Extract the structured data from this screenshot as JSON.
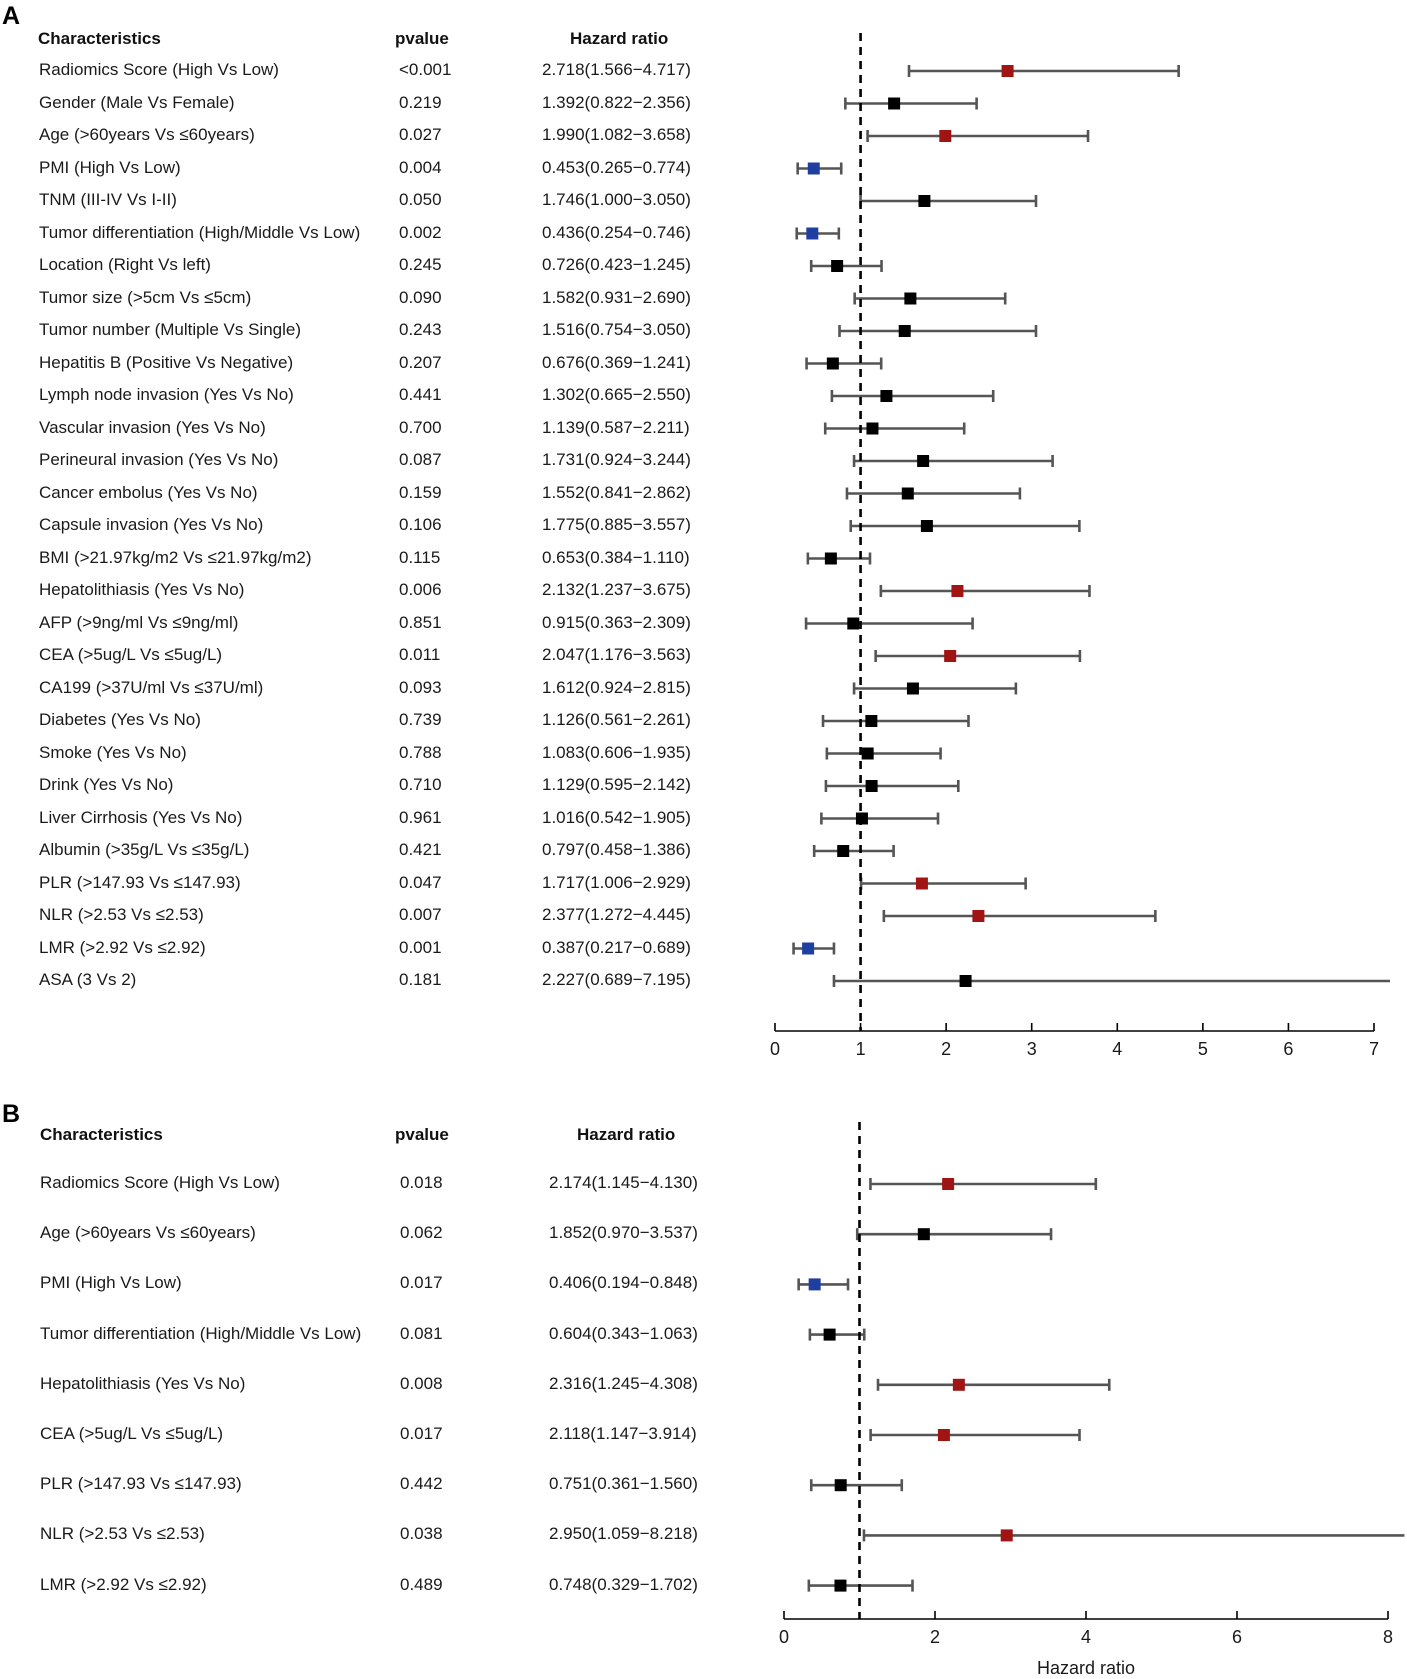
{
  "chart_data": [
    {
      "type": "forest",
      "panel_label": "A",
      "headers": {
        "characteristics": "Characteristics",
        "pvalue": "pvalue",
        "hazard_ratio": "Hazard ratio"
      },
      "reference_line": 1,
      "xlim": [
        0,
        7
      ],
      "xticks": [
        0,
        1,
        2,
        3,
        4,
        5,
        6,
        7
      ],
      "xlabel": "",
      "rows": [
        {
          "label": "Radiomics Score (High Vs Low)",
          "pvalue": "<0.001",
          "hr_text": "2.718(1.566−4.717)",
          "hr": 2.718,
          "lo": 1.566,
          "hi": 4.717,
          "color": "#a01414"
        },
        {
          "label": "Gender (Male Vs Female)",
          "pvalue": "0.219",
          "hr_text": "1.392(0.822−2.356)",
          "hr": 1.392,
          "lo": 0.822,
          "hi": 2.356,
          "color": "#000000"
        },
        {
          "label": "Age (>60years Vs ≤60years)",
          "pvalue": "0.027",
          "hr_text": "1.990(1.082−3.658)",
          "hr": 1.99,
          "lo": 1.082,
          "hi": 3.658,
          "color": "#a01414"
        },
        {
          "label": "PMI (High Vs Low)",
          "pvalue": "0.004",
          "hr_text": "0.453(0.265−0.774)",
          "hr": 0.453,
          "lo": 0.265,
          "hi": 0.774,
          "color": "#1f3fa0"
        },
        {
          "label": "TNM (III-IV Vs I-II)",
          "pvalue": "0.050",
          "hr_text": "1.746(1.000−3.050)",
          "hr": 1.746,
          "lo": 1.0,
          "hi": 3.05,
          "color": "#000000"
        },
        {
          "label": "Tumor differentiation (High/Middle Vs Low)",
          "pvalue": "0.002",
          "hr_text": "0.436(0.254−0.746)",
          "hr": 0.436,
          "lo": 0.254,
          "hi": 0.746,
          "color": "#1f3fa0"
        },
        {
          "label": "Location (Right Vs left)",
          "pvalue": "0.245",
          "hr_text": "0.726(0.423−1.245)",
          "hr": 0.726,
          "lo": 0.423,
          "hi": 1.245,
          "color": "#000000"
        },
        {
          "label": "Tumor size (>5cm Vs ≤5cm)",
          "pvalue": "0.090",
          "hr_text": "1.582(0.931−2.690)",
          "hr": 1.582,
          "lo": 0.931,
          "hi": 2.69,
          "color": "#000000"
        },
        {
          "label": "Tumor number (Multiple Vs Single)",
          "pvalue": "0.243",
          "hr_text": "1.516(0.754−3.050)",
          "hr": 1.516,
          "lo": 0.754,
          "hi": 3.05,
          "color": "#000000"
        },
        {
          "label": "Hepatitis B (Positive Vs Negative)",
          "pvalue": "0.207",
          "hr_text": "0.676(0.369−1.241)",
          "hr": 0.676,
          "lo": 0.369,
          "hi": 1.241,
          "color": "#000000"
        },
        {
          "label": "Lymph node invasion (Yes Vs No)",
          "pvalue": "0.441",
          "hr_text": "1.302(0.665−2.550)",
          "hr": 1.302,
          "lo": 0.665,
          "hi": 2.55,
          "color": "#000000"
        },
        {
          "label": "Vascular invasion (Yes Vs No)",
          "pvalue": "0.700",
          "hr_text": "1.139(0.587−2.211)",
          "hr": 1.139,
          "lo": 0.587,
          "hi": 2.211,
          "color": "#000000"
        },
        {
          "label": "Perineural invasion (Yes Vs No)",
          "pvalue": "0.087",
          "hr_text": "1.731(0.924−3.244)",
          "hr": 1.731,
          "lo": 0.924,
          "hi": 3.244,
          "color": "#000000"
        },
        {
          "label": "Cancer embolus (Yes Vs No)",
          "pvalue": "0.159",
          "hr_text": "1.552(0.841−2.862)",
          "hr": 1.552,
          "lo": 0.841,
          "hi": 2.862,
          "color": "#000000"
        },
        {
          "label": "Capsule invasion (Yes Vs No)",
          "pvalue": "0.106",
          "hr_text": "1.775(0.885−3.557)",
          "hr": 1.775,
          "lo": 0.885,
          "hi": 3.557,
          "color": "#000000"
        },
        {
          "label": "BMI (>21.97kg/m2 Vs ≤21.97kg/m2)",
          "pvalue": "0.115",
          "hr_text": "0.653(0.384−1.110)",
          "hr": 0.653,
          "lo": 0.384,
          "hi": 1.11,
          "color": "#000000"
        },
        {
          "label": "Hepatolithiasis (Yes Vs No)",
          "pvalue": "0.006",
          "hr_text": "2.132(1.237−3.675)",
          "hr": 2.132,
          "lo": 1.237,
          "hi": 3.675,
          "color": "#a01414"
        },
        {
          "label": "AFP (>9ng/ml Vs ≤9ng/ml)",
          "pvalue": "0.851",
          "hr_text": "0.915(0.363−2.309)",
          "hr": 0.915,
          "lo": 0.363,
          "hi": 2.309,
          "color": "#000000"
        },
        {
          "label": "CEA (>5ug/L Vs ≤5ug/L)",
          "pvalue": "0.011",
          "hr_text": "2.047(1.176−3.563)",
          "hr": 2.047,
          "lo": 1.176,
          "hi": 3.563,
          "color": "#a01414"
        },
        {
          "label": "CA199 (>37U/ml Vs ≤37U/ml)",
          "pvalue": "0.093",
          "hr_text": "1.612(0.924−2.815)",
          "hr": 1.612,
          "lo": 0.924,
          "hi": 2.815,
          "color": "#000000"
        },
        {
          "label": "Diabetes (Yes Vs No)",
          "pvalue": "0.739",
          "hr_text": "1.126(0.561−2.261)",
          "hr": 1.126,
          "lo": 0.561,
          "hi": 2.261,
          "color": "#000000"
        },
        {
          "label": "Smoke (Yes Vs No)",
          "pvalue": "0.788",
          "hr_text": "1.083(0.606−1.935)",
          "hr": 1.083,
          "lo": 0.606,
          "hi": 1.935,
          "color": "#000000"
        },
        {
          "label": "Drink (Yes Vs No)",
          "pvalue": "0.710",
          "hr_text": "1.129(0.595−2.142)",
          "hr": 1.129,
          "lo": 0.595,
          "hi": 2.142,
          "color": "#000000"
        },
        {
          "label": "Liver Cirrhosis (Yes Vs No)",
          "pvalue": "0.961",
          "hr_text": "1.016(0.542−1.905)",
          "hr": 1.016,
          "lo": 0.542,
          "hi": 1.905,
          "color": "#000000"
        },
        {
          "label": "Albumin (>35g/L Vs ≤35g/L)",
          "pvalue": "0.421",
          "hr_text": "0.797(0.458−1.386)",
          "hr": 0.797,
          "lo": 0.458,
          "hi": 1.386,
          "color": "#000000"
        },
        {
          "label": "PLR (>147.93 Vs ≤147.93)",
          "pvalue": "0.047",
          "hr_text": "1.717(1.006−2.929)",
          "hr": 1.717,
          "lo": 1.006,
          "hi": 2.929,
          "color": "#a01414"
        },
        {
          "label": "NLR (>2.53 Vs ≤2.53)",
          "pvalue": "0.007",
          "hr_text": "2.377(1.272−4.445)",
          "hr": 2.377,
          "lo": 1.272,
          "hi": 4.445,
          "color": "#a01414"
        },
        {
          "label": "LMR (>2.92 Vs ≤2.92)",
          "pvalue": "0.001",
          "hr_text": "0.387(0.217−0.689)",
          "hr": 0.387,
          "lo": 0.217,
          "hi": 0.689,
          "color": "#1f3fa0"
        },
        {
          "label": "ASA (3 Vs 2)",
          "pvalue": "0.181",
          "hr_text": "2.227(0.689−7.195)",
          "hr": 2.227,
          "lo": 0.689,
          "hi": 7.195,
          "color": "#000000"
        }
      ]
    },
    {
      "type": "forest",
      "panel_label": "B",
      "headers": {
        "characteristics": "Characteristics",
        "pvalue": "pvalue",
        "hazard_ratio": "Hazard ratio"
      },
      "reference_line": 1,
      "xlim": [
        0,
        8
      ],
      "xticks": [
        0,
        2,
        4,
        6,
        8
      ],
      "xlabel": "Hazard ratio",
      "rows": [
        {
          "label": "Radiomics Score (High Vs Low)",
          "pvalue": "0.018",
          "hr_text": "2.174(1.145−4.130)",
          "hr": 2.174,
          "lo": 1.145,
          "hi": 4.13,
          "color": "#a01414"
        },
        {
          "label": "Age (>60years Vs ≤60years)",
          "pvalue": "0.062",
          "hr_text": "1.852(0.970−3.537)",
          "hr": 1.852,
          "lo": 0.97,
          "hi": 3.537,
          "color": "#000000"
        },
        {
          "label": "PMI (High Vs Low)",
          "pvalue": "0.017",
          "hr_text": "0.406(0.194−0.848)",
          "hr": 0.406,
          "lo": 0.194,
          "hi": 0.848,
          "color": "#1f3fa0"
        },
        {
          "label": "Tumor differentiation (High/Middle Vs Low)",
          "pvalue": "0.081",
          "hr_text": "0.604(0.343−1.063)",
          "hr": 0.604,
          "lo": 0.343,
          "hi": 1.063,
          "color": "#000000"
        },
        {
          "label": "Hepatolithiasis (Yes Vs No)",
          "pvalue": "0.008",
          "hr_text": "2.316(1.245−4.308)",
          "hr": 2.316,
          "lo": 1.245,
          "hi": 4.308,
          "color": "#a01414"
        },
        {
          "label": "CEA (>5ug/L Vs ≤5ug/L)",
          "pvalue": "0.017",
          "hr_text": "2.118(1.147−3.914)",
          "hr": 2.118,
          "lo": 1.147,
          "hi": 3.914,
          "color": "#a01414"
        },
        {
          "label": "PLR (>147.93 Vs ≤147.93)",
          "pvalue": "0.442",
          "hr_text": "0.751(0.361−1.560)",
          "hr": 0.751,
          "lo": 0.361,
          "hi": 1.56,
          "color": "#000000"
        },
        {
          "label": "NLR (>2.53 Vs ≤2.53)",
          "pvalue": "0.038",
          "hr_text": "2.950(1.059−8.218)",
          "hr": 2.95,
          "lo": 1.059,
          "hi": 8.218,
          "color": "#a01414"
        },
        {
          "label": "LMR (>2.92 Vs ≤2.92)",
          "pvalue": "0.489",
          "hr_text": "0.748(0.329−1.702)",
          "hr": 0.748,
          "lo": 0.329,
          "hi": 1.702,
          "color": "#000000"
        }
      ]
    }
  ]
}
